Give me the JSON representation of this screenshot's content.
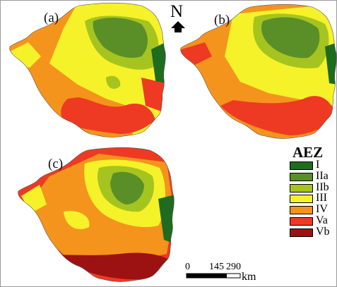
{
  "panels": [
    {
      "label": "(a)"
    },
    {
      "label": "(b)"
    },
    {
      "label": "(c)"
    }
  ],
  "north_arrow": {
    "letter": "N"
  },
  "legend": {
    "title": "AEZ",
    "items": [
      {
        "label": "I",
        "color": "#1f6b1f"
      },
      {
        "label": "IIa",
        "color": "#5a8f28"
      },
      {
        "label": "IIb",
        "color": "#a6c41f"
      },
      {
        "label": "III",
        "color": "#f5f22a"
      },
      {
        "label": "IV",
        "color": "#f5941c"
      },
      {
        "label": "Va",
        "color": "#ee3a22"
      },
      {
        "label": "Vb",
        "color": "#9c1212"
      }
    ]
  },
  "scale_bar": {
    "ticks": [
      "0",
      "145",
      "290"
    ],
    "unit": "km"
  }
}
